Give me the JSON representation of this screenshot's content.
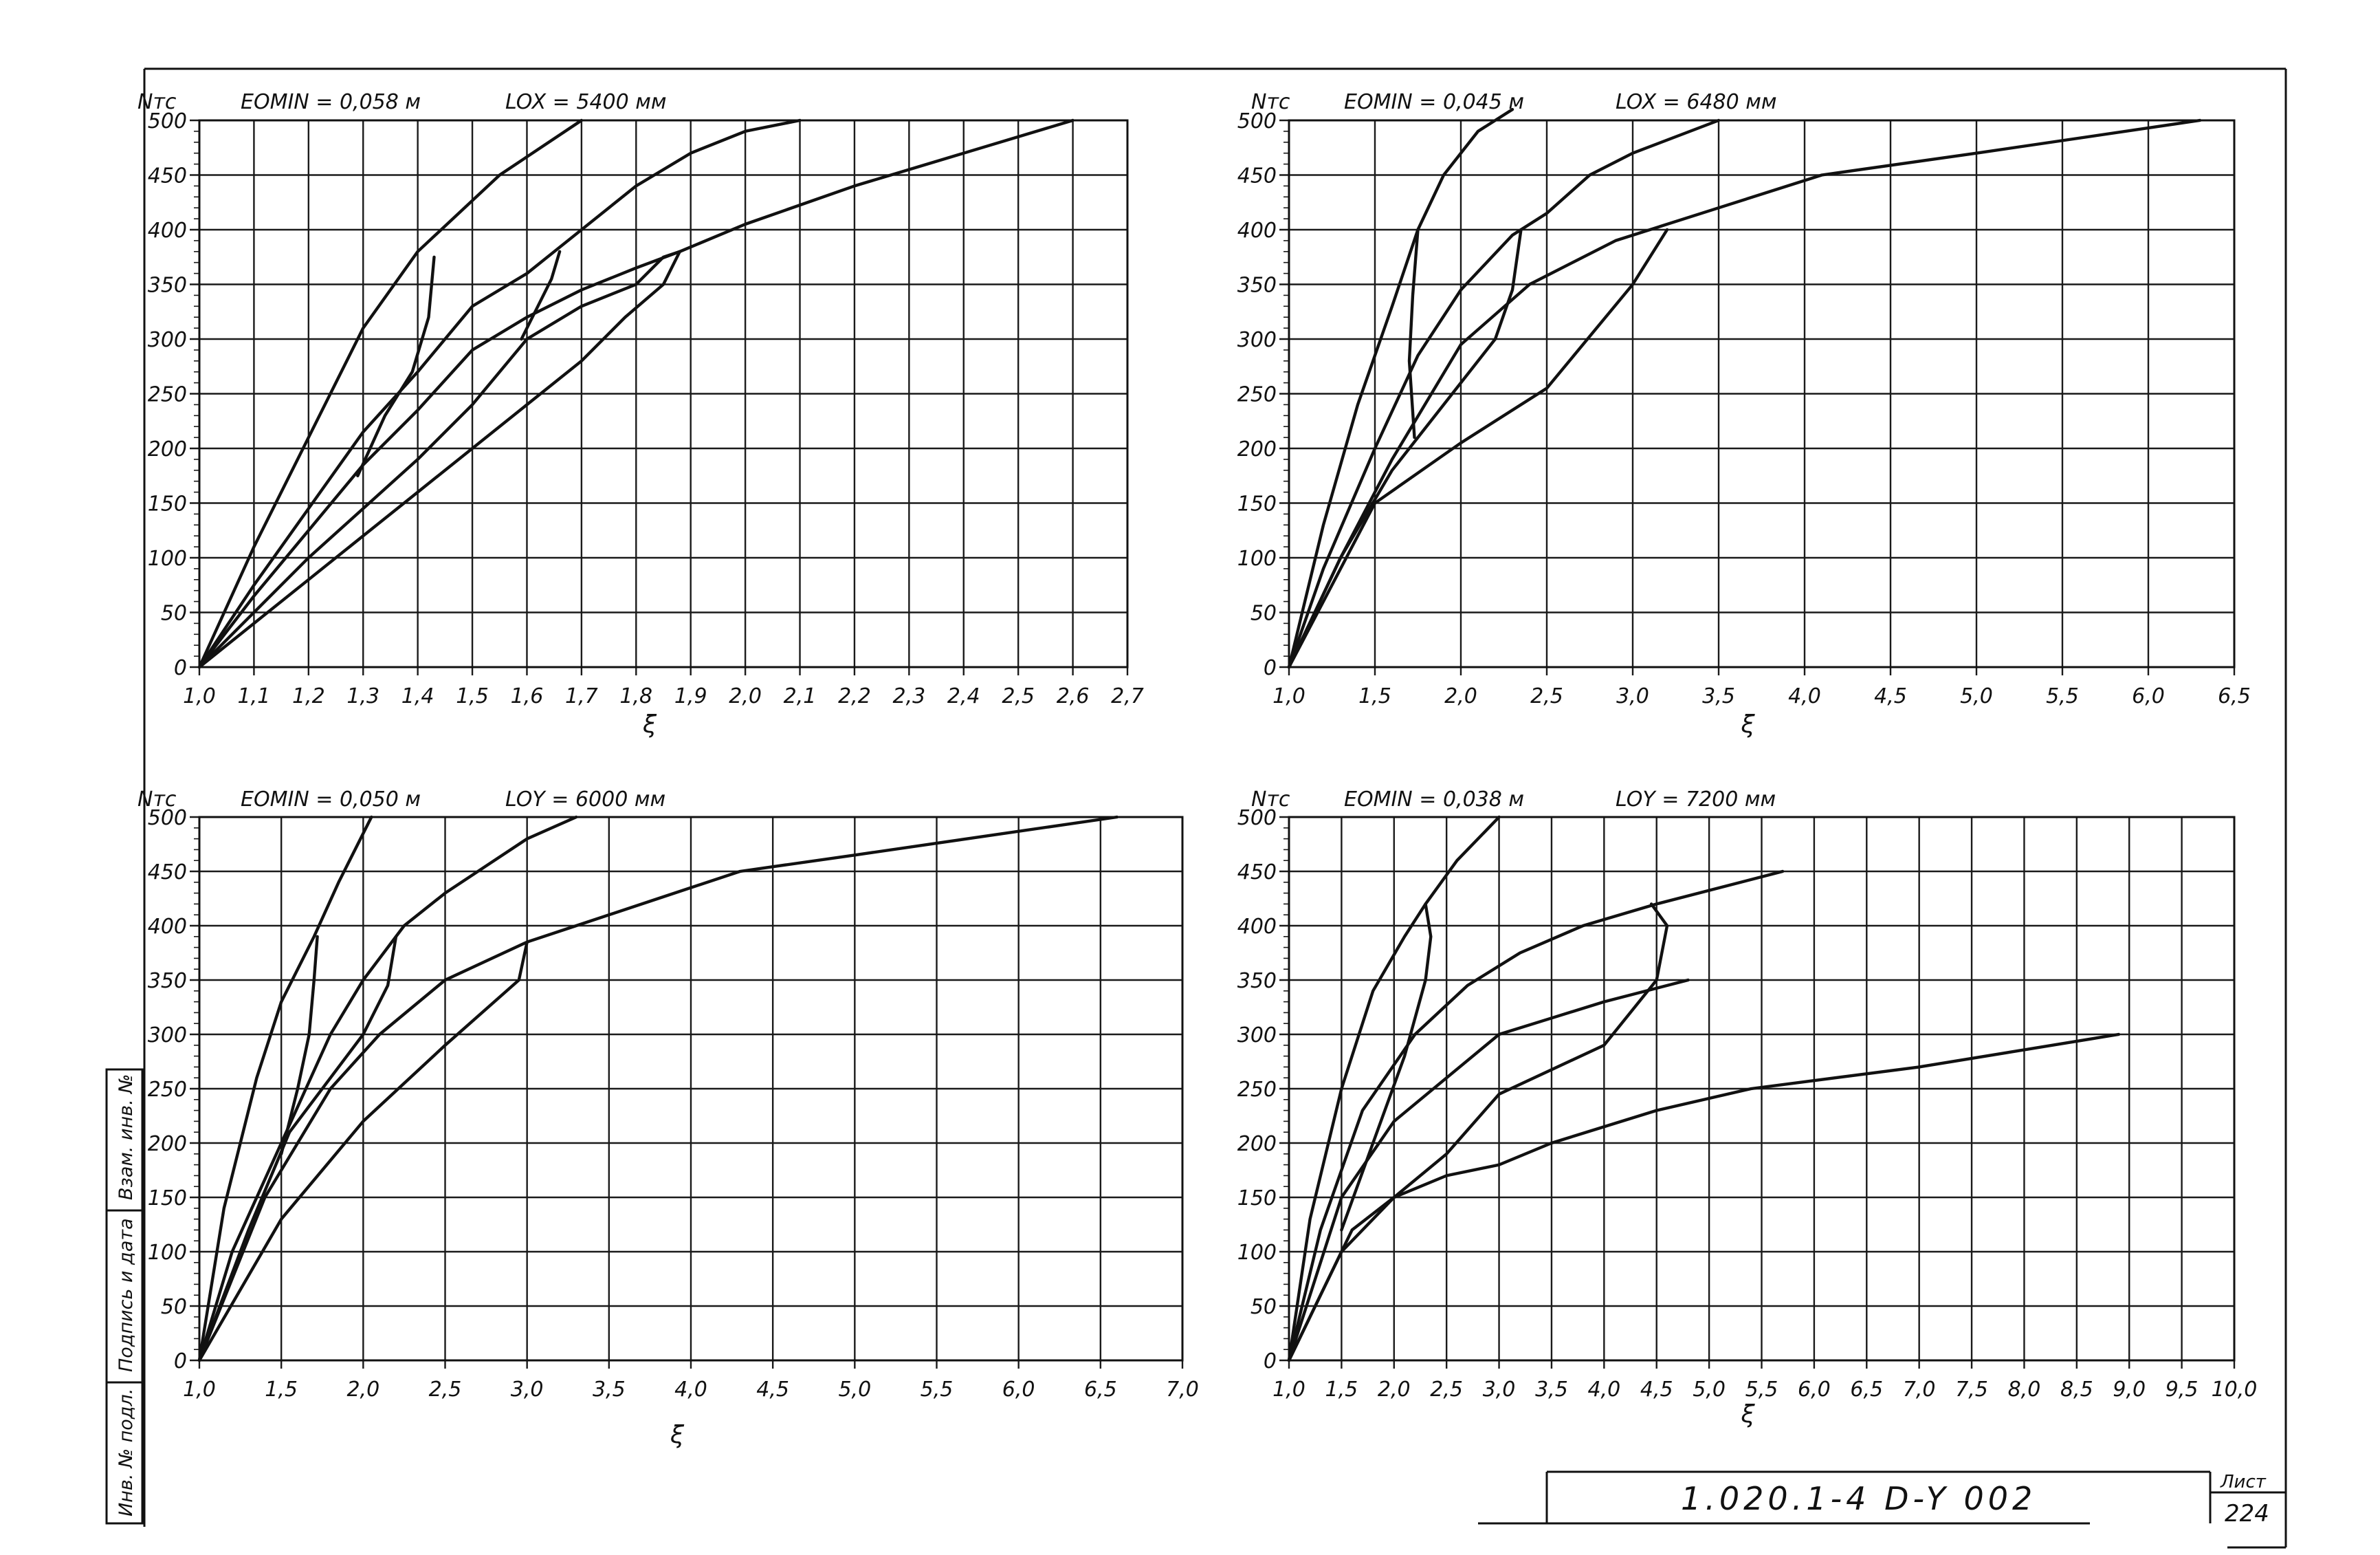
{
  "chart_data": [
    {
      "type": "line",
      "header_left": "Nтс",
      "header_mid": "EOMIN = 0,058 м",
      "header_right": "LOX = 5400 мм",
      "xlabel": "ξ",
      "xlim": [
        1.0,
        2.7
      ],
      "ylim": [
        0,
        500
      ],
      "grid": true,
      "x_ticks": [
        1.0,
        1.1,
        1.2,
        1.3,
        1.4,
        1.5,
        1.6,
        1.7,
        1.8,
        1.9,
        2.0,
        2.1,
        2.2,
        2.3,
        2.4,
        2.5,
        2.6,
        2.7
      ],
      "x_tick_labels": [
        "1,0",
        "1,1",
        "1,2",
        "1,3",
        "1,4",
        "1,5",
        "1,6",
        "1,7",
        "1,8",
        "1,9",
        "2,0",
        "2,1",
        "2,2",
        "2,3",
        "2,4",
        "2,5",
        "2,6",
        "2,7"
      ],
      "y_ticks": [
        0,
        50,
        100,
        150,
        200,
        250,
        300,
        350,
        400,
        450,
        500
      ],
      "y_tick_labels": [
        "0",
        "50",
        "100",
        "150",
        "200",
        "250",
        "300",
        "350",
        "400",
        "450",
        "500"
      ],
      "series": [
        {
          "x": [
            1.0,
            1.1,
            1.2,
            1.3,
            1.4,
            1.55,
            1.7
          ],
          "y": [
            0,
            110,
            210,
            310,
            380,
            450,
            500
          ]
        },
        {
          "x": [
            1.0,
            1.1,
            1.2,
            1.3,
            1.4,
            1.5,
            1.6,
            1.65,
            1.8,
            1.9,
            2.0,
            2.1
          ],
          "y": [
            0,
            75,
            145,
            215,
            270,
            330,
            360,
            380,
            440,
            470,
            490,
            500
          ]
        },
        {
          "x": [
            1.0,
            1.1,
            1.2,
            1.3,
            1.4,
            1.5,
            1.6,
            1.7,
            1.8,
            1.88,
            2.0,
            2.2,
            2.4,
            2.6
          ],
          "y": [
            0,
            65,
            125,
            185,
            235,
            290,
            320,
            345,
            365,
            380,
            405,
            440,
            470,
            500
          ]
        },
        {
          "x": [
            1.0,
            1.1,
            1.2,
            1.3,
            1.4,
            1.5,
            1.6,
            1.7,
            1.8,
            1.85,
            1.88
          ],
          "y": [
            0,
            50,
            100,
            145,
            190,
            240,
            300,
            330,
            350,
            375,
            380
          ]
        },
        {
          "x": [
            1.0,
            1.2,
            1.4,
            1.6,
            1.7,
            1.78,
            1.85,
            1.88
          ],
          "y": [
            0,
            80,
            160,
            240,
            280,
            320,
            350,
            380
          ]
        },
        {
          "x": [
            1.29,
            1.34,
            1.39,
            1.42,
            1.43
          ],
          "y": [
            175,
            230,
            270,
            320,
            375
          ]
        },
        {
          "x": [
            1.59,
            1.62,
            1.645,
            1.66
          ],
          "y": [
            300,
            330,
            355,
            380
          ]
        }
      ]
    },
    {
      "type": "line",
      "header_left": "Nтс",
      "header_mid": "EOMIN = 0,045 м",
      "header_right": "LOX = 6480 мм",
      "xlabel": "ξ",
      "xlim": [
        1.0,
        6.5
      ],
      "ylim": [
        0,
        500
      ],
      "grid": true,
      "x_ticks": [
        1.0,
        1.5,
        2.0,
        2.5,
        3.0,
        3.5,
        4.0,
        4.5,
        5.0,
        5.5,
        6.0,
        6.5
      ],
      "x_tick_labels": [
        "1,0",
        "1,5",
        "2,0",
        "2,5",
        "3,0",
        "3,5",
        "4,0",
        "4,5",
        "5,0",
        "5,5",
        "6,0",
        "6,5"
      ],
      "y_ticks": [
        0,
        50,
        100,
        150,
        200,
        250,
        300,
        350,
        400,
        450,
        500
      ],
      "y_tick_labels": [
        "0",
        "50",
        "100",
        "150",
        "200",
        "250",
        "300",
        "350",
        "400",
        "450",
        "500"
      ],
      "series": [
        {
          "x": [
            1.0,
            1.2,
            1.4,
            1.6,
            1.75,
            1.9,
            2.1,
            2.3
          ],
          "y": [
            0,
            130,
            240,
            330,
            400,
            450,
            490,
            510
          ]
        },
        {
          "x": [
            1.0,
            1.2,
            1.5,
            1.75,
            2.0,
            2.3,
            2.5,
            2.75,
            3.0,
            3.5
          ],
          "y": [
            0,
            90,
            200,
            285,
            345,
            395,
            415,
            450,
            470,
            500
          ]
        },
        {
          "x": [
            1.0,
            1.3,
            1.6,
            2.0,
            2.4,
            2.9,
            3.5,
            4.1,
            5.0,
            6.3
          ],
          "y": [
            0,
            100,
            190,
            295,
            350,
            390,
            420,
            450,
            470,
            500
          ]
        },
        {
          "x": [
            1.0,
            1.5,
            2.0,
            2.5,
            3.0,
            3.2
          ],
          "y": [
            0,
            150,
            205,
            255,
            350,
            400
          ]
        },
        {
          "x": [
            1.0,
            1.3,
            1.6,
            1.9,
            2.2,
            2.3,
            2.35
          ],
          "y": [
            0,
            100,
            180,
            240,
            300,
            345,
            400
          ]
        },
        {
          "x": [
            1.73,
            1.7,
            1.72,
            1.75
          ],
          "y": [
            210,
            280,
            340,
            400
          ]
        }
      ]
    },
    {
      "type": "line",
      "header_left": "Nтс",
      "header_mid": "EOMIN = 0,050 м",
      "header_right": "LOY = 6000 мм",
      "xlabel": "ξ",
      "xlim": [
        1.0,
        7.0
      ],
      "ylim": [
        0,
        500
      ],
      "grid": true,
      "x_ticks": [
        1.0,
        1.5,
        2.0,
        2.5,
        3.0,
        3.5,
        4.0,
        4.5,
        5.0,
        5.5,
        6.0,
        6.5,
        7.0
      ],
      "x_tick_labels": [
        "1,0",
        "1,5",
        "2,0",
        "2,5",
        "3,0",
        "3,5",
        "4,0",
        "4,5",
        "5,0",
        "5,5",
        "6,0",
        "6,5",
        "7,0"
      ],
      "y_ticks": [
        0,
        50,
        100,
        150,
        200,
        250,
        300,
        350,
        400,
        450,
        500
      ],
      "y_tick_labels": [
        "0",
        "50",
        "100",
        "150",
        "200",
        "250",
        "300",
        "350",
        "400",
        "450",
        "500"
      ],
      "series": [
        {
          "x": [
            1.0,
            1.15,
            1.35,
            1.5,
            1.7,
            1.85,
            2.05
          ],
          "y": [
            0,
            140,
            260,
            330,
            390,
            440,
            500
          ]
        },
        {
          "x": [
            1.0,
            1.2,
            1.5,
            1.8,
            2.0,
            2.25,
            2.5,
            2.75,
            3.0,
            3.3
          ],
          "y": [
            0,
            100,
            200,
            300,
            350,
            400,
            430,
            455,
            480,
            500
          ]
        },
        {
          "x": [
            1.0,
            1.4,
            1.8,
            2.1,
            2.5,
            3.0,
            3.3,
            3.8,
            4.3,
            5.0,
            6.6
          ],
          "y": [
            0,
            150,
            250,
            300,
            350,
            385,
            400,
            425,
            450,
            465,
            500
          ]
        },
        {
          "x": [
            1.0,
            1.5,
            2.0,
            2.5,
            2.95,
            3.0
          ],
          "y": [
            0,
            130,
            220,
            290,
            350,
            385
          ]
        },
        {
          "x": [
            1.0,
            1.3,
            1.55,
            1.8,
            2.0,
            2.15,
            2.2
          ],
          "y": [
            0,
            120,
            210,
            260,
            300,
            345,
            390
          ]
        },
        {
          "x": [
            1.5,
            1.6,
            1.67,
            1.7,
            1.72
          ],
          "y": [
            190,
            250,
            300,
            350,
            390
          ]
        }
      ]
    },
    {
      "type": "line",
      "header_left": "Nтс",
      "header_mid": "EOMIN = 0,038 м",
      "header_right": "LOY = 7200 мм",
      "xlabel": "ξ",
      "xlim": [
        1.0,
        10.0
      ],
      "ylim": [
        0,
        500
      ],
      "grid": true,
      "x_ticks": [
        1.0,
        1.5,
        2.0,
        2.5,
        3.0,
        3.5,
        4.0,
        4.5,
        5.0,
        5.5,
        6.0,
        6.5,
        7.0,
        7.5,
        8.0,
        8.5,
        9.0,
        9.5,
        10.0
      ],
      "x_tick_labels": [
        "1,0",
        "1,5",
        "2,0",
        "2,5",
        "3,0",
        "3,5",
        "4,0",
        "4,5",
        "5,0",
        "5,5",
        "6,0",
        "6,5",
        "7,0",
        "7,5",
        "8,0",
        "8,5",
        "9,0",
        "9,5",
        "10,0"
      ],
      "y_ticks": [
        0,
        50,
        100,
        150,
        200,
        250,
        300,
        350,
        400,
        450,
        500
      ],
      "y_tick_labels": [
        "0",
        "50",
        "100",
        "150",
        "200",
        "250",
        "300",
        "350",
        "400",
        "450",
        "500"
      ],
      "series": [
        {
          "x": [
            1.0,
            1.2,
            1.5,
            1.8,
            2.1,
            2.3,
            2.6,
            3.0
          ],
          "y": [
            0,
            130,
            250,
            340,
            390,
            420,
            460,
            500
          ]
        },
        {
          "x": [
            1.0,
            1.3,
            1.7,
            2.2,
            2.7,
            3.2,
            3.8,
            4.5,
            5.7
          ],
          "y": [
            0,
            120,
            230,
            300,
            345,
            375,
            400,
            420,
            450
          ]
        },
        {
          "x": [
            1.0,
            1.5,
            2.0,
            2.5,
            3.0,
            3.5,
            4.0,
            4.8
          ],
          "y": [
            0,
            150,
            220,
            260,
            300,
            315,
            330,
            350
          ]
        },
        {
          "x": [
            1.0,
            1.6,
            2.0,
            2.5,
            3.0,
            4.0,
            4.5,
            4.6,
            4.45
          ],
          "y": [
            0,
            120,
            150,
            190,
            245,
            290,
            350,
            400,
            420
          ]
        },
        {
          "x": [
            1.0,
            1.5,
            2.0,
            2.5,
            3.0,
            3.5,
            4.5,
            5.4,
            7.0,
            8.9
          ],
          "y": [
            0,
            100,
            150,
            170,
            180,
            200,
            230,
            250,
            270,
            300
          ]
        },
        {
          "x": [
            1.5,
            1.8,
            2.1,
            2.3,
            2.35,
            2.3
          ],
          "y": [
            120,
            200,
            280,
            350,
            390,
            420
          ]
        }
      ]
    }
  ],
  "side_stamp": [
    "Инв. № подл.",
    "Подпись и дата",
    "Взам. инв. №"
  ],
  "title_block": {
    "doc_code": "1.020.1-4   D-Y   002",
    "sheet_label": "Лист",
    "sheet_number": "224"
  }
}
